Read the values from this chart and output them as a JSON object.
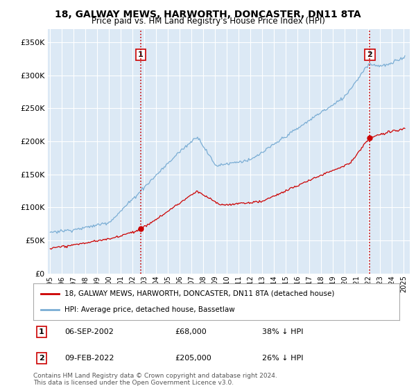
{
  "title": "18, GALWAY MEWS, HARWORTH, DONCASTER, DN11 8TA",
  "subtitle": "Price paid vs. HM Land Registry's House Price Index (HPI)",
  "red_label": "18, GALWAY MEWS, HARWORTH, DONCASTER, DN11 8TA (detached house)",
  "blue_label": "HPI: Average price, detached house, Bassetlaw",
  "transaction1_date": "06-SEP-2002",
  "transaction1_price": "£68,000",
  "transaction1_hpi": "38% ↓ HPI",
  "transaction1_year": 2002.67,
  "transaction1_value": 68000,
  "transaction2_date": "09-FEB-2022",
  "transaction2_price": "£205,000",
  "transaction2_hpi": "26% ↓ HPI",
  "transaction2_year": 2022.11,
  "transaction2_value": 205000,
  "footer": "Contains HM Land Registry data © Crown copyright and database right 2024.\nThis data is licensed under the Open Government Licence v3.0.",
  "plot_bg_color": "#dce9f5",
  "grid_color": "#ffffff",
  "red_color": "#cc0000",
  "blue_color": "#7aadd4",
  "ylim": [
    0,
    370000
  ],
  "yticks": [
    0,
    50000,
    100000,
    150000,
    200000,
    250000,
    300000,
    350000
  ],
  "xmin": 1994.8,
  "xmax": 2025.5
}
